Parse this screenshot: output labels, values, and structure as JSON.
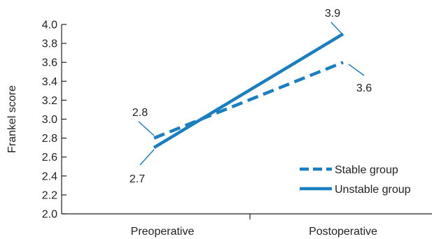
{
  "chart_data": {
    "type": "line",
    "title": "",
    "xlabel": "",
    "ylabel": "Frankel score",
    "categories": [
      "Preoperative",
      "Postoperative"
    ],
    "ylim": [
      2.0,
      4.0
    ],
    "yticks": [
      "2.0",
      "2.2",
      "2.4",
      "2.6",
      "2.8",
      "3.0",
      "3.2",
      "3.4",
      "3.6",
      "3.8",
      "4.0"
    ],
    "grid": false,
    "legend_position": "bottom-right",
    "series": [
      {
        "name": "Stable group",
        "style": "dashed",
        "color": "#1a7fc1",
        "values": [
          2.8,
          3.6
        ],
        "labels": [
          "2.8",
          "3.6"
        ]
      },
      {
        "name": "Unstable group",
        "style": "solid",
        "color": "#1a7fc1",
        "values": [
          2.7,
          3.9
        ],
        "labels": [
          "2.7",
          "3.9"
        ]
      }
    ]
  }
}
